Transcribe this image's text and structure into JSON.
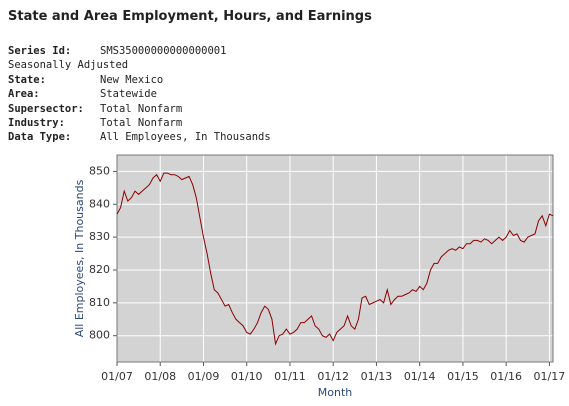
{
  "header": {
    "title": "State and Area Employment, Hours, and Earnings",
    "rows": [
      {
        "label": "Series Id:",
        "value": "SMS35000000000000001"
      },
      {
        "text": "Seasonally Adjusted"
      },
      {
        "label": "State:",
        "value": "New Mexico"
      },
      {
        "label": "Area:",
        "value": "Statewide"
      },
      {
        "label": "Supersector:",
        "value": "Total Nonfarm"
      },
      {
        "label": "Industry:",
        "value": "Total Nonfarm"
      },
      {
        "label": "Data Type:",
        "value": "All Employees, In Thousands"
      }
    ]
  },
  "chart_data": {
    "type": "line",
    "x_label": "Month",
    "y_label": "All Employees, In Thousands",
    "color": "#8b0000",
    "grid": true,
    "x": [
      "2007-01",
      "2007-02",
      "2007-03",
      "2007-04",
      "2007-05",
      "2007-06",
      "2007-07",
      "2007-08",
      "2007-09",
      "2007-10",
      "2007-11",
      "2007-12",
      "2008-01",
      "2008-02",
      "2008-03",
      "2008-04",
      "2008-05",
      "2008-06",
      "2008-07",
      "2008-08",
      "2008-09",
      "2008-10",
      "2008-11",
      "2008-12",
      "2009-01",
      "2009-02",
      "2009-03",
      "2009-04",
      "2009-05",
      "2009-06",
      "2009-07",
      "2009-08",
      "2009-09",
      "2009-10",
      "2009-11",
      "2009-12",
      "2010-01",
      "2010-02",
      "2010-03",
      "2010-04",
      "2010-05",
      "2010-06",
      "2010-07",
      "2010-08",
      "2010-09",
      "2010-10",
      "2010-11",
      "2010-12",
      "2011-01",
      "2011-02",
      "2011-03",
      "2011-04",
      "2011-05",
      "2011-06",
      "2011-07",
      "2011-08",
      "2011-09",
      "2011-10",
      "2011-11",
      "2011-12",
      "2012-01",
      "2012-02",
      "2012-03",
      "2012-04",
      "2012-05",
      "2012-06",
      "2012-07",
      "2012-08",
      "2012-09",
      "2012-10",
      "2012-11",
      "2012-12",
      "2013-01",
      "2013-02",
      "2013-03",
      "2013-04",
      "2013-05",
      "2013-06",
      "2013-07",
      "2013-08",
      "2013-09",
      "2013-10",
      "2013-11",
      "2013-12",
      "2014-01",
      "2014-02",
      "2014-03",
      "2014-04",
      "2014-05",
      "2014-06",
      "2014-07",
      "2014-08",
      "2014-09",
      "2014-10",
      "2014-11",
      "2014-12",
      "2015-01",
      "2015-02",
      "2015-03",
      "2015-04",
      "2015-05",
      "2015-06",
      "2015-07",
      "2015-08",
      "2015-09",
      "2015-10",
      "2015-11",
      "2015-12",
      "2016-01",
      "2016-02",
      "2016-03",
      "2016-04",
      "2016-05",
      "2016-06",
      "2016-07",
      "2016-08",
      "2016-09",
      "2016-10",
      "2016-11",
      "2016-12",
      "2017-01",
      "2017-02"
    ],
    "values": [
      837,
      839,
      844,
      841,
      842,
      844,
      843,
      844,
      845,
      846,
      848,
      849,
      847,
      849.5,
      849.5,
      849,
      849,
      848.5,
      847.5,
      848,
      848.5,
      846,
      842,
      836,
      830,
      825,
      819,
      814,
      813,
      811,
      809,
      809.5,
      807,
      805,
      804,
      803,
      801,
      800.5,
      802,
      804,
      807,
      809,
      808,
      805,
      797.5,
      800,
      800.5,
      802,
      800.5,
      801,
      802,
      804,
      804,
      805,
      806,
      803,
      802,
      800,
      799.5,
      800.5,
      798.5,
      801,
      802,
      803,
      806,
      803,
      802,
      805,
      811.5,
      812,
      809.5,
      810,
      810.5,
      811,
      810,
      814,
      809.5,
      811,
      812,
      812,
      812.5,
      813,
      814,
      813.5,
      815,
      814,
      816,
      820,
      822,
      822,
      824,
      825,
      826,
      826.5,
      826,
      827,
      826.5,
      828,
      828,
      829,
      829,
      828.5,
      829.5,
      829,
      828,
      829,
      830,
      829,
      830,
      832,
      830.5,
      831,
      829,
      828.5,
      830,
      830.5,
      831,
      835,
      836.5,
      833.5,
      837,
      836.5
    ],
    "xlim": [
      "2007-01",
      "2017-02"
    ],
    "xticks": [
      {
        "value": "2007-01",
        "label": "01/07"
      },
      {
        "value": "2008-01",
        "label": "01/08"
      },
      {
        "value": "2009-01",
        "label": "01/09"
      },
      {
        "value": "2010-01",
        "label": "01/10"
      },
      {
        "value": "2011-01",
        "label": "01/11"
      },
      {
        "value": "2012-01",
        "label": "01/12"
      },
      {
        "value": "2013-01",
        "label": "01/13"
      },
      {
        "value": "2014-01",
        "label": "01/14"
      },
      {
        "value": "2015-01",
        "label": "01/15"
      },
      {
        "value": "2016-01",
        "label": "01/16"
      },
      {
        "value": "2017-01",
        "label": "01/17"
      }
    ],
    "ylim": [
      792,
      855
    ],
    "yticks": [
      800,
      810,
      820,
      830,
      840,
      850
    ]
  }
}
